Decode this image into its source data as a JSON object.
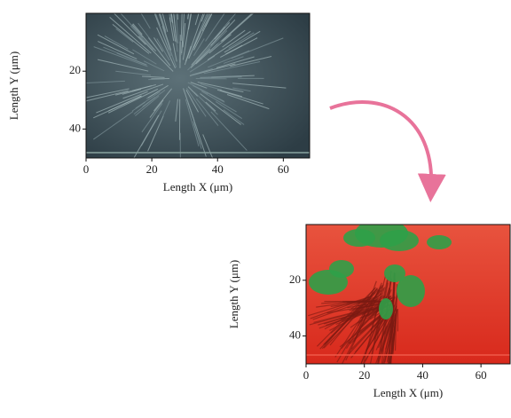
{
  "chart_data": [
    {
      "type": "image",
      "xlabel": "Length X (μm)",
      "ylabel": "Length Y (μm)",
      "xlim": [
        0,
        68
      ],
      "ylim": [
        50,
        0
      ],
      "xticks": [
        0,
        20,
        40,
        60
      ],
      "yticks": [
        20,
        40
      ]
    },
    {
      "type": "image",
      "xlabel": "Length X (μm)",
      "ylabel": "Length Y (μm)",
      "xlim": [
        0,
        70
      ],
      "ylim": [
        50,
        0
      ],
      "xticks": [
        0,
        20,
        40,
        60
      ],
      "yticks": [
        20,
        40
      ]
    }
  ]
}
